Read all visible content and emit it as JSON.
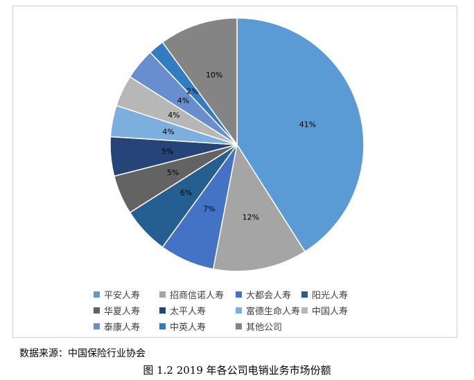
{
  "chart_data": {
    "type": "pie",
    "categories": [
      "平安人寿",
      "招商信诺人寿",
      "大都会人寿",
      "阳光人寿",
      "华夏人寿",
      "太平人寿",
      "富德生命人寿",
      "中国人寿",
      "泰康人寿",
      "中英人寿",
      "其他公司"
    ],
    "values": [
      41,
      12,
      7,
      6,
      5,
      5,
      4,
      4,
      4,
      2,
      10
    ],
    "data_labels": [
      "41%",
      "12%",
      "7%",
      "6%",
      "5%",
      "5%",
      "4%",
      "4%",
      "4%",
      "2%",
      "10%"
    ],
    "colors": [
      "#5B9BD5",
      "#A5A5A5",
      "#4472C4",
      "#255E91",
      "#636363",
      "#264478",
      "#7CAFDD",
      "#B7B7B7",
      "#698ED0",
      "#327DC2",
      "#848484"
    ],
    "legend_position": "bottom"
  },
  "source_text": "数据来源：中国保险行业协会",
  "caption_text": "图 1.2 2019 年各公司电销业务市场份额"
}
